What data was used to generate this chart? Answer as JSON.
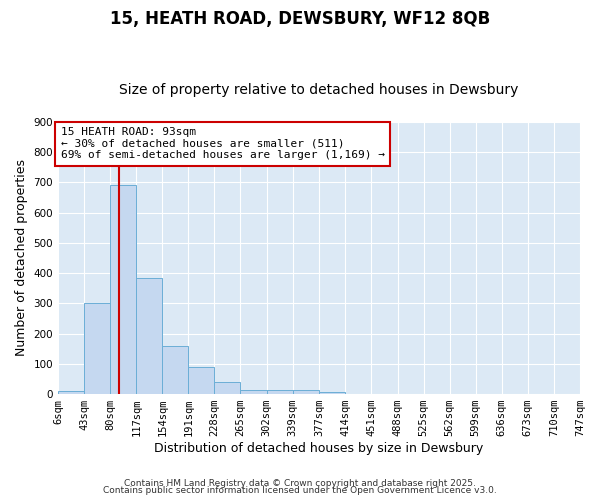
{
  "title": "15, HEATH ROAD, DEWSBURY, WF12 8QB",
  "subtitle": "Size of property relative to detached houses in Dewsbury",
  "xlabel": "Distribution of detached houses by size in Dewsbury",
  "ylabel": "Number of detached properties",
  "bin_labels": [
    "6sqm",
    "43sqm",
    "80sqm",
    "117sqm",
    "154sqm",
    "191sqm",
    "228sqm",
    "265sqm",
    "302sqm",
    "339sqm",
    "377sqm",
    "414sqm",
    "451sqm",
    "488sqm",
    "525sqm",
    "562sqm",
    "599sqm",
    "636sqm",
    "673sqm",
    "710sqm",
    "747sqm"
  ],
  "bin_edges": [
    6,
    43,
    80,
    117,
    154,
    191,
    228,
    265,
    302,
    339,
    377,
    414,
    451,
    488,
    525,
    562,
    599,
    636,
    673,
    710,
    747
  ],
  "bar_heights": [
    10,
    300,
    690,
    385,
    160,
    88,
    40,
    15,
    15,
    12,
    8,
    0,
    0,
    0,
    0,
    0,
    0,
    0,
    0,
    0
  ],
  "bar_color": "#c5d8f0",
  "bar_edge_color": "#6baed6",
  "background_color": "#dce9f5",
  "grid_color": "#ffffff",
  "vline_x": 93,
  "vline_color": "#cc0000",
  "ylim": [
    0,
    900
  ],
  "yticks": [
    0,
    100,
    200,
    300,
    400,
    500,
    600,
    700,
    800,
    900
  ],
  "annotation_text": "15 HEATH ROAD: 93sqm\n← 30% of detached houses are smaller (511)\n69% of semi-detached houses are larger (1,169) →",
  "annotation_box_color": "#cc0000",
  "title_fontsize": 12,
  "subtitle_fontsize": 10,
  "axis_label_fontsize": 9,
  "tick_fontsize": 7.5,
  "annotation_fontsize": 8,
  "footer_text1": "Contains HM Land Registry data © Crown copyright and database right 2025.",
  "footer_text2": "Contains public sector information licensed under the Open Government Licence v3.0.",
  "footer_fontsize": 6.5,
  "fig_bg_color": "#ffffff"
}
